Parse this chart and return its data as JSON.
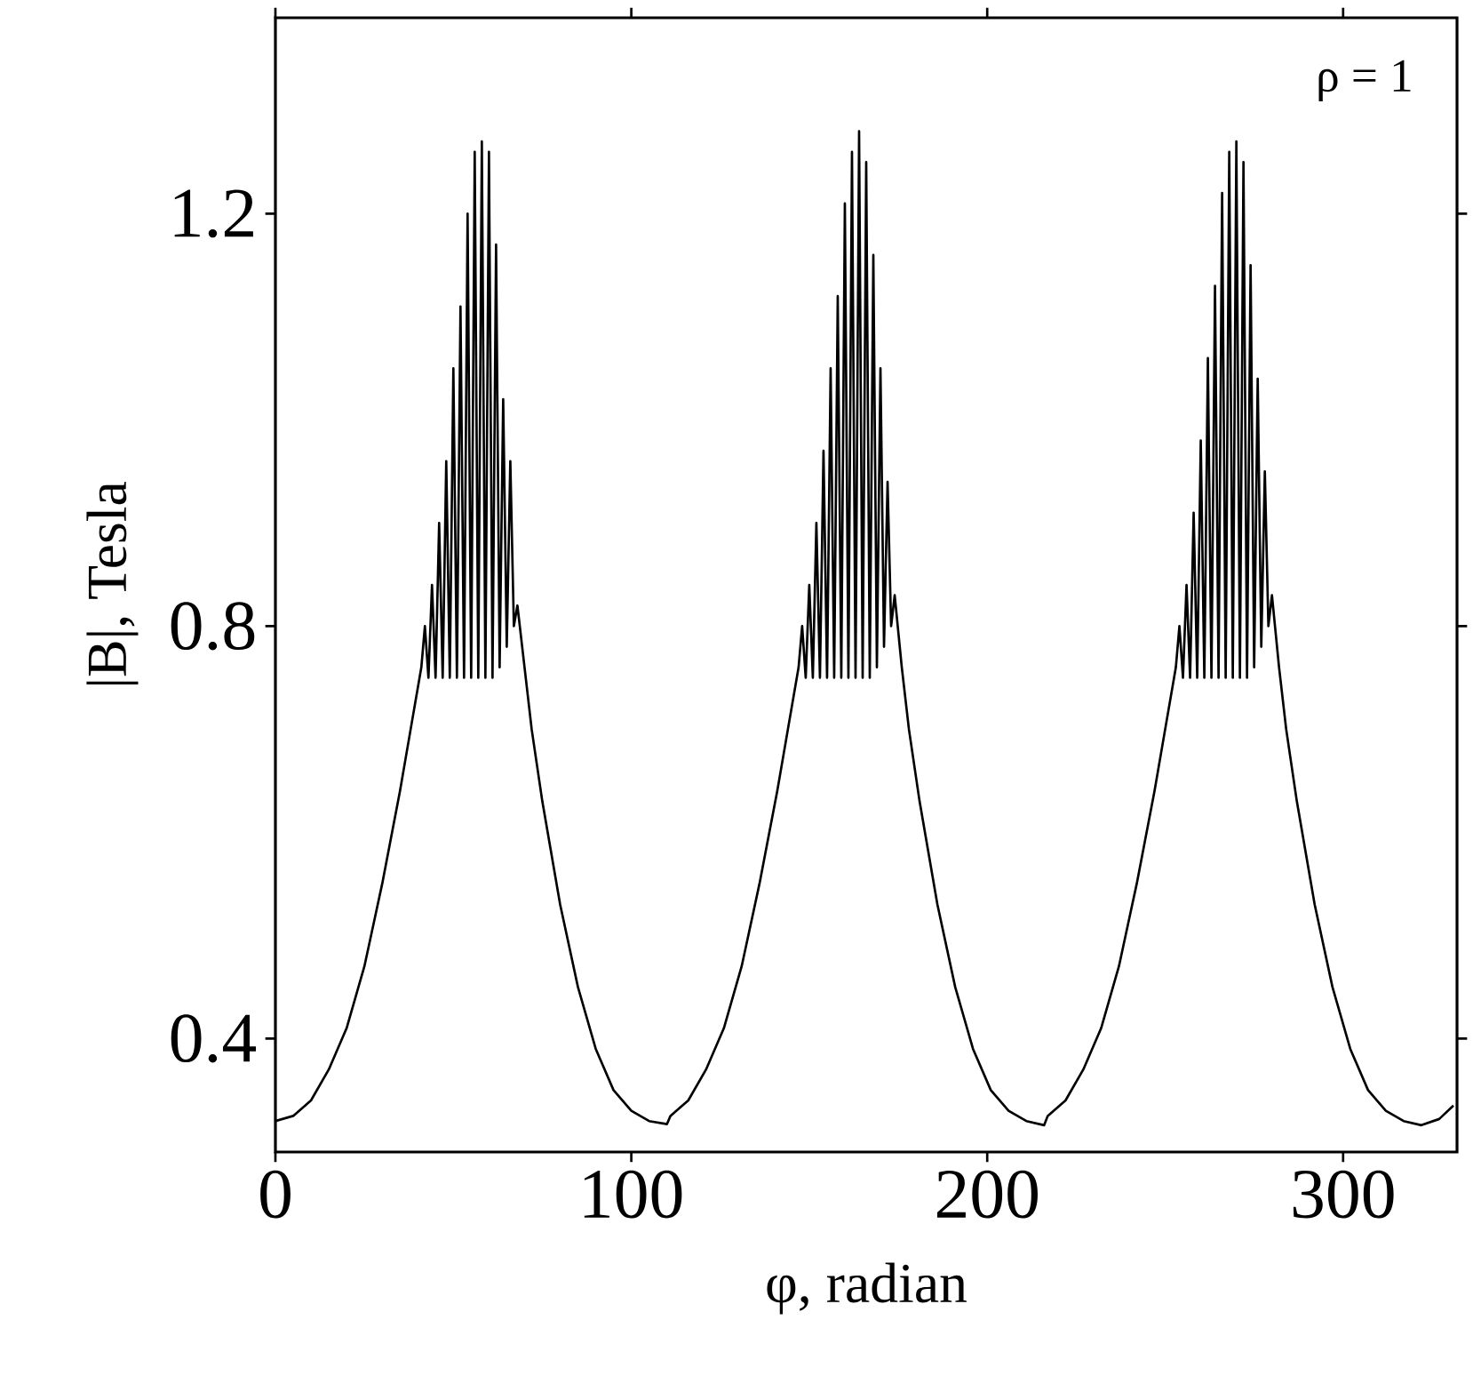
{
  "chart_data": {
    "type": "line",
    "xlabel": "φ, radian",
    "ylabel": "|B|, Tesla",
    "annotations": [
      "ρ = 1"
    ],
    "x": [
      0,
      5,
      10,
      15,
      20,
      25,
      30,
      35,
      38,
      41,
      42,
      43,
      44,
      45,
      46,
      47,
      48,
      49,
      50,
      51,
      52,
      53,
      54,
      55,
      56,
      57,
      58,
      59,
      60,
      61,
      62,
      63,
      64,
      65,
      66,
      67,
      68,
      70,
      72,
      75,
      80,
      85,
      90,
      95,
      100,
      105,
      110,
      111,
      116,
      121,
      126,
      131,
      136,
      141,
      144,
      147,
      148,
      149,
      150,
      151,
      152,
      153,
      154,
      155,
      156,
      157,
      158,
      159,
      160,
      161,
      162,
      163,
      164,
      165,
      166,
      167,
      168,
      169,
      170,
      171,
      172,
      173,
      174,
      176,
      178,
      181,
      186,
      191,
      196,
      201,
      206,
      211,
      216,
      217,
      222,
      227,
      232,
      237,
      242,
      247,
      250,
      253,
      254,
      255,
      256,
      257,
      258,
      259,
      260,
      261,
      262,
      263,
      264,
      265,
      266,
      267,
      268,
      269,
      270,
      271,
      272,
      273,
      274,
      275,
      276,
      277,
      278,
      279,
      280,
      282,
      284,
      287,
      292,
      297,
      302,
      307,
      312,
      317,
      322,
      327,
      331
    ],
    "values": [
      0.32,
      0.325,
      0.34,
      0.37,
      0.41,
      0.47,
      0.55,
      0.64,
      0.7,
      0.76,
      0.8,
      0.75,
      0.84,
      0.75,
      0.9,
      0.75,
      0.96,
      0.75,
      1.05,
      0.75,
      1.11,
      0.75,
      1.2,
      0.75,
      1.26,
      0.75,
      1.27,
      0.75,
      1.26,
      0.75,
      1.17,
      0.76,
      1.02,
      0.78,
      0.96,
      0.8,
      0.82,
      0.76,
      0.7,
      0.63,
      0.53,
      0.45,
      0.39,
      0.35,
      0.33,
      0.32,
      0.317,
      0.325,
      0.34,
      0.37,
      0.41,
      0.47,
      0.55,
      0.64,
      0.7,
      0.76,
      0.8,
      0.75,
      0.84,
      0.75,
      0.9,
      0.75,
      0.97,
      0.75,
      1.05,
      0.75,
      1.12,
      0.75,
      1.21,
      0.75,
      1.26,
      0.75,
      1.28,
      0.75,
      1.25,
      0.75,
      1.16,
      0.76,
      1.05,
      0.78,
      0.94,
      0.8,
      0.83,
      0.76,
      0.7,
      0.63,
      0.53,
      0.45,
      0.39,
      0.35,
      0.33,
      0.32,
      0.316,
      0.325,
      0.34,
      0.37,
      0.41,
      0.47,
      0.55,
      0.64,
      0.7,
      0.76,
      0.8,
      0.75,
      0.84,
      0.75,
      0.91,
      0.75,
      0.98,
      0.75,
      1.06,
      0.75,
      1.13,
      0.75,
      1.22,
      0.75,
      1.26,
      0.75,
      1.27,
      0.75,
      1.25,
      0.75,
      1.15,
      0.76,
      1.04,
      0.78,
      0.95,
      0.8,
      0.83,
      0.76,
      0.7,
      0.63,
      0.53,
      0.45,
      0.39,
      0.35,
      0.33,
      0.32,
      0.316,
      0.322,
      0.335
    ],
    "color": "#000000",
    "marker": "none",
    "line_style": "solid",
    "grid": false,
    "xlim": [
      0,
      332
    ],
    "ylim": [
      0.29,
      1.39
    ],
    "xticks": [
      0,
      100,
      200,
      300
    ],
    "yticks": [
      0.4,
      0.8,
      1.2
    ]
  }
}
